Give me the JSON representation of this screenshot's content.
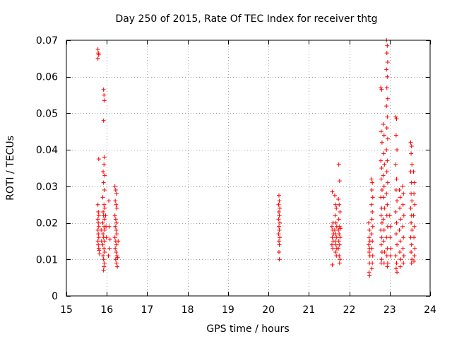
{
  "chart_data": {
    "type": "scatter",
    "title": "Day 250 of 2015, Rate Of TEC Index for receiver thtg",
    "xlabel": "GPS time / hours",
    "ylabel": "ROTI / TECUs",
    "xlim": [
      15,
      24
    ],
    "ylim": [
      0,
      0.07
    ],
    "xticks": [
      15,
      16,
      17,
      18,
      19,
      20,
      21,
      22,
      23,
      24
    ],
    "yticks": [
      0,
      0.01,
      0.02,
      0.03,
      0.04,
      0.05,
      0.06,
      0.07
    ],
    "ytick_labels": [
      "0",
      "0.01",
      "0.02",
      "0.03",
      "0.04",
      "0.05",
      "0.06",
      "0.07"
    ],
    "grid": true,
    "marker": "+",
    "colors": {
      "series": "#ff0000",
      "grid": "#a0a0a0",
      "axis": "#000000"
    },
    "series": [
      {
        "name": "ROTI",
        "points": [
          [
            15.78,
            0.0675
          ],
          [
            15.79,
            0.0665
          ],
          [
            15.8,
            0.066
          ],
          [
            15.78,
            0.065
          ],
          [
            15.8,
            0.0375
          ],
          [
            15.78,
            0.025
          ],
          [
            15.79,
            0.023
          ],
          [
            15.8,
            0.022
          ],
          [
            15.78,
            0.021
          ],
          [
            15.79,
            0.02
          ],
          [
            15.8,
            0.019
          ],
          [
            15.78,
            0.018
          ],
          [
            15.79,
            0.017
          ],
          [
            15.8,
            0.016
          ],
          [
            15.78,
            0.015
          ],
          [
            15.79,
            0.014
          ],
          [
            15.8,
            0.013
          ],
          [
            15.81,
            0.0125
          ],
          [
            15.82,
            0.0115
          ],
          [
            15.92,
            0.0565
          ],
          [
            15.93,
            0.055
          ],
          [
            15.94,
            0.0535
          ],
          [
            15.92,
            0.048
          ],
          [
            15.94,
            0.038
          ],
          [
            15.93,
            0.036
          ],
          [
            15.91,
            0.034
          ],
          [
            15.95,
            0.033
          ],
          [
            15.92,
            0.031
          ],
          [
            15.94,
            0.029
          ],
          [
            15.9,
            0.027
          ],
          [
            15.93,
            0.025
          ],
          [
            15.95,
            0.024
          ],
          [
            15.91,
            0.023
          ],
          [
            15.92,
            0.022
          ],
          [
            15.94,
            0.021
          ],
          [
            15.9,
            0.02
          ],
          [
            15.93,
            0.019
          ],
          [
            15.95,
            0.018
          ],
          [
            15.91,
            0.017
          ],
          [
            15.92,
            0.016
          ],
          [
            15.94,
            0.015
          ],
          [
            15.9,
            0.014
          ],
          [
            15.93,
            0.013
          ],
          [
            15.95,
            0.012
          ],
          [
            15.91,
            0.011
          ],
          [
            15.92,
            0.01
          ],
          [
            15.94,
            0.009
          ],
          [
            15.93,
            0.008
          ],
          [
            15.92,
            0.007
          ],
          [
            15.97,
            0.022
          ],
          [
            15.98,
            0.019
          ],
          [
            15.99,
            0.016
          ],
          [
            15.86,
            0.018
          ],
          [
            15.87,
            0.015
          ],
          [
            16.05,
            0.026
          ],
          [
            16.06,
            0.019
          ],
          [
            16.07,
            0.013
          ],
          [
            16.08,
            0.0155
          ],
          [
            16.04,
            0.011
          ],
          [
            16.2,
            0.03
          ],
          [
            16.22,
            0.029
          ],
          [
            16.24,
            0.028
          ],
          [
            16.21,
            0.026
          ],
          [
            16.23,
            0.025
          ],
          [
            16.25,
            0.024
          ],
          [
            16.2,
            0.022
          ],
          [
            16.22,
            0.021
          ],
          [
            16.24,
            0.02
          ],
          [
            16.21,
            0.019
          ],
          [
            16.23,
            0.018
          ],
          [
            16.25,
            0.017
          ],
          [
            16.2,
            0.016
          ],
          [
            16.22,
            0.015
          ],
          [
            16.24,
            0.014
          ],
          [
            16.21,
            0.013
          ],
          [
            16.23,
            0.012
          ],
          [
            16.25,
            0.011
          ],
          [
            16.22,
            0.01
          ],
          [
            16.24,
            0.009
          ],
          [
            16.26,
            0.008
          ],
          [
            16.27,
            0.0105
          ],
          [
            16.28,
            0.015
          ],
          [
            20.26,
            0.0275
          ],
          [
            20.27,
            0.026
          ],
          [
            20.25,
            0.025
          ],
          [
            20.28,
            0.024
          ],
          [
            20.26,
            0.023
          ],
          [
            20.27,
            0.022
          ],
          [
            20.25,
            0.021
          ],
          [
            20.28,
            0.02
          ],
          [
            20.26,
            0.019
          ],
          [
            20.27,
            0.018
          ],
          [
            20.25,
            0.017
          ],
          [
            20.28,
            0.016
          ],
          [
            20.26,
            0.015
          ],
          [
            20.27,
            0.014
          ],
          [
            20.26,
            0.012
          ],
          [
            20.27,
            0.01
          ],
          [
            21.58,
            0.0285
          ],
          [
            21.6,
            0.02
          ],
          [
            21.57,
            0.019
          ],
          [
            21.59,
            0.018
          ],
          [
            21.61,
            0.017
          ],
          [
            21.58,
            0.016
          ],
          [
            21.6,
            0.015
          ],
          [
            21.57,
            0.014
          ],
          [
            21.59,
            0.013
          ],
          [
            21.58,
            0.0085
          ],
          [
            21.64,
            0.0275
          ],
          [
            21.66,
            0.025
          ],
          [
            21.68,
            0.024
          ],
          [
            21.65,
            0.022
          ],
          [
            21.67,
            0.02
          ],
          [
            21.69,
            0.019
          ],
          [
            21.64,
            0.018
          ],
          [
            21.66,
            0.017
          ],
          [
            21.68,
            0.016
          ],
          [
            21.65,
            0.015
          ],
          [
            21.67,
            0.014
          ],
          [
            21.69,
            0.013
          ],
          [
            21.66,
            0.012
          ],
          [
            21.68,
            0.011
          ],
          [
            21.74,
            0.036
          ],
          [
            21.76,
            0.0315
          ],
          [
            21.73,
            0.0265
          ],
          [
            21.75,
            0.025
          ],
          [
            21.77,
            0.023
          ],
          [
            21.74,
            0.021
          ],
          [
            21.76,
            0.019
          ],
          [
            21.73,
            0.018
          ],
          [
            21.75,
            0.017
          ],
          [
            21.77,
            0.016
          ],
          [
            21.74,
            0.015
          ],
          [
            21.76,
            0.014
          ],
          [
            21.73,
            0.013
          ],
          [
            21.75,
            0.011
          ],
          [
            21.77,
            0.01
          ],
          [
            21.76,
            0.009
          ],
          [
            21.78,
            0.0185
          ],
          [
            22.48,
            0.02
          ],
          [
            22.5,
            0.018
          ],
          [
            22.49,
            0.016
          ],
          [
            22.51,
            0.015
          ],
          [
            22.48,
            0.014
          ],
          [
            22.5,
            0.013
          ],
          [
            22.49,
            0.012
          ],
          [
            22.51,
            0.011
          ],
          [
            22.5,
            0.009
          ],
          [
            22.49,
            0.0065
          ],
          [
            22.5,
            0.0055
          ],
          [
            22.55,
            0.032
          ],
          [
            22.57,
            0.031
          ],
          [
            22.56,
            0.029
          ],
          [
            22.58,
            0.027
          ],
          [
            22.55,
            0.025
          ],
          [
            22.57,
            0.023
          ],
          [
            22.56,
            0.021
          ],
          [
            22.58,
            0.019
          ],
          [
            22.55,
            0.017
          ],
          [
            22.57,
            0.015
          ],
          [
            22.56,
            0.013
          ],
          [
            22.58,
            0.011
          ],
          [
            22.57,
            0.009
          ],
          [
            22.56,
            0.0075
          ],
          [
            22.78,
            0.057
          ],
          [
            22.8,
            0.0565
          ],
          [
            22.79,
            0.045
          ],
          [
            22.81,
            0.042
          ],
          [
            22.78,
            0.037
          ],
          [
            22.8,
            0.035
          ],
          [
            22.79,
            0.032
          ],
          [
            22.81,
            0.029
          ],
          [
            22.78,
            0.027
          ],
          [
            22.8,
            0.024
          ],
          [
            22.79,
            0.022
          ],
          [
            22.81,
            0.02
          ],
          [
            22.78,
            0.018
          ],
          [
            22.8,
            0.016
          ],
          [
            22.79,
            0.014
          ],
          [
            22.81,
            0.012
          ],
          [
            22.8,
            0.01
          ],
          [
            22.79,
            0.009
          ],
          [
            22.84,
            0.047
          ],
          [
            22.86,
            0.044
          ],
          [
            22.85,
            0.039
          ],
          [
            22.87,
            0.036
          ],
          [
            22.84,
            0.033
          ],
          [
            22.86,
            0.03
          ],
          [
            22.85,
            0.027
          ],
          [
            22.87,
            0.024
          ],
          [
            22.84,
            0.021
          ],
          [
            22.86,
            0.018
          ],
          [
            22.85,
            0.015
          ],
          [
            22.87,
            0.012
          ],
          [
            22.86,
            0.009
          ],
          [
            22.92,
            0.07
          ],
          [
            22.94,
            0.0685
          ],
          [
            22.93,
            0.0665
          ],
          [
            22.95,
            0.064
          ],
          [
            22.92,
            0.062
          ],
          [
            22.94,
            0.06
          ],
          [
            22.93,
            0.057
          ],
          [
            22.95,
            0.054
          ],
          [
            22.92,
            0.052
          ],
          [
            22.94,
            0.049
          ],
          [
            22.93,
            0.046
          ],
          [
            22.95,
            0.043
          ],
          [
            22.92,
            0.04
          ],
          [
            22.94,
            0.037
          ],
          [
            22.93,
            0.034
          ],
          [
            22.95,
            0.031
          ],
          [
            22.92,
            0.028
          ],
          [
            22.94,
            0.025
          ],
          [
            22.93,
            0.022
          ],
          [
            22.95,
            0.019
          ],
          [
            22.92,
            0.016
          ],
          [
            22.94,
            0.013
          ],
          [
            22.93,
            0.011
          ],
          [
            22.95,
            0.009
          ],
          [
            22.94,
            0.008
          ],
          [
            23.0,
            0.022
          ],
          [
            23.02,
            0.019
          ],
          [
            23.01,
            0.016
          ],
          [
            23.03,
            0.013
          ],
          [
            23.02,
            0.011
          ],
          [
            23.15,
            0.049
          ],
          [
            23.17,
            0.0485
          ],
          [
            23.16,
            0.044
          ],
          [
            23.18,
            0.04
          ],
          [
            23.15,
            0.036
          ],
          [
            23.17,
            0.032
          ],
          [
            23.16,
            0.029
          ],
          [
            23.18,
            0.026
          ],
          [
            23.15,
            0.023
          ],
          [
            23.17,
            0.02
          ],
          [
            23.16,
            0.017
          ],
          [
            23.18,
            0.014
          ],
          [
            23.15,
            0.011
          ],
          [
            23.17,
            0.009
          ],
          [
            23.16,
            0.0075
          ],
          [
            23.18,
            0.0065
          ],
          [
            23.24,
            0.029
          ],
          [
            23.26,
            0.027
          ],
          [
            23.25,
            0.024
          ],
          [
            23.27,
            0.021
          ],
          [
            23.24,
            0.018
          ],
          [
            23.26,
            0.015
          ],
          [
            23.25,
            0.012
          ],
          [
            23.27,
            0.01
          ],
          [
            23.26,
            0.008
          ],
          [
            23.32,
            0.03
          ],
          [
            23.34,
            0.028
          ],
          [
            23.33,
            0.025
          ],
          [
            23.35,
            0.022
          ],
          [
            23.32,
            0.019
          ],
          [
            23.34,
            0.016
          ],
          [
            23.33,
            0.013
          ],
          [
            23.35,
            0.011
          ],
          [
            23.34,
            0.009
          ],
          [
            23.52,
            0.042
          ],
          [
            23.54,
            0.041
          ],
          [
            23.53,
            0.039
          ],
          [
            23.55,
            0.036
          ],
          [
            23.52,
            0.034
          ],
          [
            23.54,
            0.031
          ],
          [
            23.53,
            0.028
          ],
          [
            23.55,
            0.026
          ],
          [
            23.52,
            0.024
          ],
          [
            23.54,
            0.022
          ],
          [
            23.53,
            0.02
          ],
          [
            23.55,
            0.018
          ],
          [
            23.52,
            0.016
          ],
          [
            23.54,
            0.014
          ],
          [
            23.53,
            0.012
          ],
          [
            23.55,
            0.01
          ],
          [
            23.54,
            0.009
          ],
          [
            23.59,
            0.034
          ],
          [
            23.61,
            0.031
          ],
          [
            23.6,
            0.028
          ],
          [
            23.62,
            0.025
          ],
          [
            23.59,
            0.022
          ],
          [
            23.61,
            0.019
          ],
          [
            23.6,
            0.016
          ],
          [
            23.62,
            0.013
          ],
          [
            23.61,
            0.011
          ],
          [
            23.6,
            0.0095
          ]
        ]
      }
    ]
  }
}
